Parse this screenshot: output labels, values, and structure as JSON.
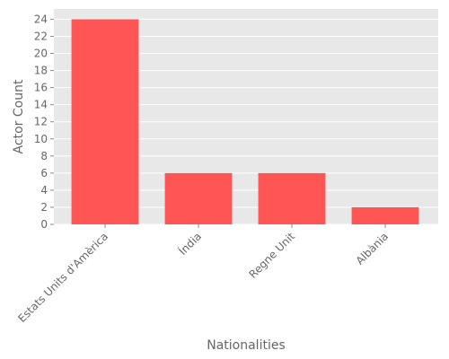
{
  "chart_data": {
    "type": "bar",
    "x_label": "Nationalities",
    "y_label": "Actor Count",
    "categories": [
      "Estats Units d'Amèrica",
      "Índia",
      "Regne Unit",
      "Albània"
    ],
    "values": [
      24,
      6,
      6,
      2
    ],
    "color": "#ff5555",
    "ylim": [
      0,
      25.2
    ],
    "yticks": [
      0,
      2,
      4,
      6,
      8,
      10,
      12,
      14,
      16,
      18,
      20,
      22,
      24
    ],
    "grid": true
  }
}
